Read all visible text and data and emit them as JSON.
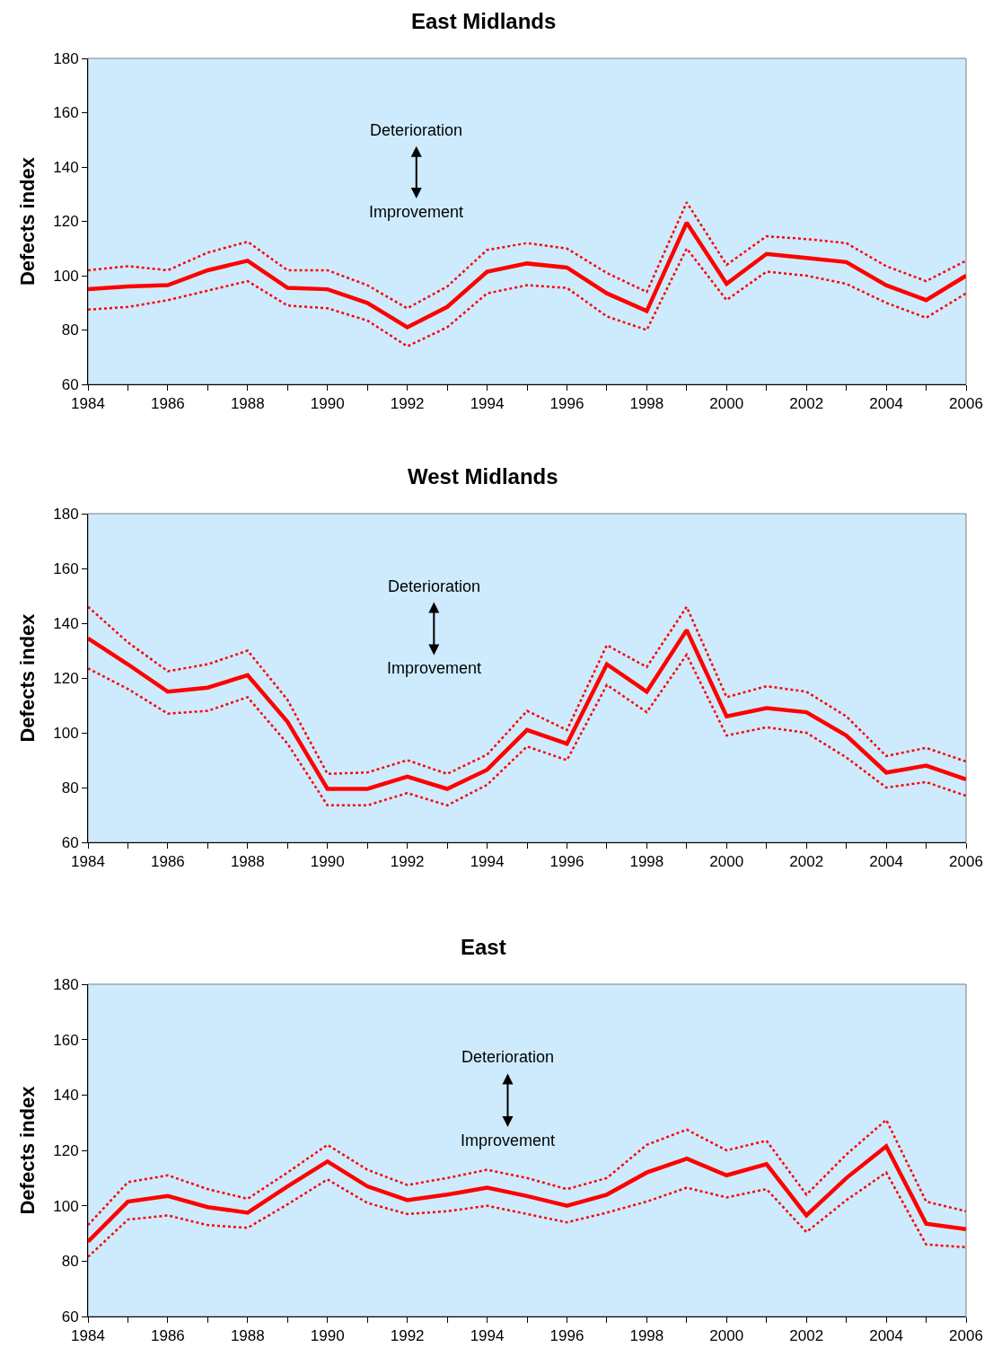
{
  "chart_data": [
    {
      "type": "line",
      "title": "East Midlands",
      "ylabel": "Defects index",
      "annotations": [
        "Deterioration",
        "Improvement"
      ],
      "x": [
        1984,
        1985,
        1986,
        1987,
        1988,
        1989,
        1990,
        1991,
        1992,
        1993,
        1994,
        1995,
        1996,
        1997,
        1998,
        1999,
        2000,
        2001,
        2002,
        2003,
        2004,
        2005,
        2006
      ],
      "series": [
        {
          "color": "#ff0000",
          "line_style": "dotted",
          "values": [
            102,
            103.5,
            102,
            108.5,
            112.5,
            102,
            102,
            96.5,
            88,
            96,
            109.5,
            112,
            110,
            101,
            94,
            127,
            104,
            114.5,
            113.5,
            112,
            103.5,
            98,
            105.5
          ]
        },
        {
          "color": "#ff0000",
          "line_style": "dotted",
          "values": [
            87.5,
            88.5,
            91,
            94.5,
            98,
            89,
            88,
            83.5,
            74,
            81,
            93.5,
            96.5,
            95.5,
            85,
            80,
            110,
            91,
            101.5,
            100,
            97,
            90,
            84.5,
            93.5
          ]
        },
        {
          "color": "#ff0000",
          "line_style": "solid",
          "values": [
            95,
            96,
            96.5,
            102,
            105.5,
            95.5,
            95,
            90,
            81,
            88.5,
            101.5,
            104.5,
            103,
            93.5,
            87,
            119.5,
            97,
            108,
            106.5,
            105,
            96.5,
            91,
            100
          ]
        }
      ],
      "xlim": [
        1984,
        2006
      ],
      "xticks": [
        1984,
        {
          "value": 1985,
          "label": null
        },
        1986,
        {
          "value": 1987,
          "label": null
        },
        1988,
        {
          "value": 1989,
          "label": null
        },
        1990,
        {
          "value": 1991,
          "label": null
        },
        1992,
        {
          "value": 1993,
          "label": null
        },
        1994,
        {
          "value": 1995,
          "label": null
        },
        1996,
        {
          "value": 1997,
          "label": null
        },
        1998,
        {
          "value": 1999,
          "label": null
        },
        2000,
        {
          "value": 2001,
          "label": null
        },
        2002,
        {
          "value": 2003,
          "label": null
        },
        2004,
        {
          "value": 2005,
          "label": null
        },
        2006
      ],
      "ylim": [
        60,
        180
      ],
      "yticks": [
        60,
        80,
        100,
        120,
        140,
        160,
        180
      ],
      "grid": false,
      "marker": "none"
    },
    {
      "type": "line",
      "title": "West Midlands",
      "ylabel": "Defects index",
      "annotations": [
        "Deterioration",
        "Improvement"
      ],
      "x": [
        1984,
        1985,
        1986,
        1987,
        1988,
        1989,
        1990,
        1991,
        1992,
        1993,
        1994,
        1995,
        1996,
        1997,
        1998,
        1999,
        2000,
        2001,
        2002,
        2003,
        2004,
        2005,
        2006
      ],
      "series": [
        {
          "color": "#ff0000",
          "line_style": "dotted",
          "values": [
            146,
            133,
            122.5,
            125,
            130,
            112,
            85,
            85.5,
            90,
            85,
            92,
            108,
            101,
            132,
            124,
            146,
            113,
            117,
            115,
            106,
            91.5,
            94.5,
            89.5
          ]
        },
        {
          "color": "#ff0000",
          "line_style": "dotted",
          "values": [
            123.5,
            116,
            107,
            108,
            113,
            96,
            73.5,
            73.5,
            78,
            73.5,
            81,
            95,
            90,
            117.5,
            107.5,
            128.5,
            99,
            102,
            100,
            91,
            80,
            82,
            77
          ]
        },
        {
          "color": "#ff0000",
          "line_style": "solid",
          "values": [
            134.5,
            125,
            115,
            116.5,
            121,
            104,
            79.5,
            79.5,
            84,
            79.5,
            86.5,
            101,
            96,
            125,
            115,
            137.5,
            106,
            109,
            107.5,
            99,
            85.5,
            88,
            83
          ]
        }
      ],
      "xlim": [
        1984,
        2006
      ],
      "xticks": [
        1984,
        {
          "value": 1985,
          "label": null
        },
        1986,
        {
          "value": 1987,
          "label": null
        },
        1988,
        {
          "value": 1989,
          "label": null
        },
        1990,
        {
          "value": 1991,
          "label": null
        },
        1992,
        {
          "value": 1993,
          "label": null
        },
        1994,
        {
          "value": 1995,
          "label": null
        },
        1996,
        {
          "value": 1997,
          "label": null
        },
        1998,
        {
          "value": 1999,
          "label": null
        },
        2000,
        {
          "value": 2001,
          "label": null
        },
        2002,
        {
          "value": 2003,
          "label": null
        },
        2004,
        {
          "value": 2005,
          "label": null
        },
        2006
      ],
      "ylim": [
        60,
        180
      ],
      "yticks": [
        60,
        80,
        100,
        120,
        140,
        160,
        180
      ],
      "grid": false,
      "marker": "none"
    },
    {
      "type": "line",
      "title": "East",
      "ylabel": "Defects index",
      "annotations": [
        "Deterioration",
        "Improvement"
      ],
      "x": [
        1984,
        1985,
        1986,
        1987,
        1988,
        1989,
        1990,
        1991,
        1992,
        1993,
        1994,
        1995,
        1996,
        1997,
        1998,
        1999,
        2000,
        2001,
        2002,
        2003,
        2004,
        2005,
        2006
      ],
      "series": [
        {
          "color": "#ff0000",
          "line_style": "dotted",
          "values": [
            93,
            108.5,
            111,
            106,
            102.5,
            112,
            122,
            113,
            107.5,
            110,
            113,
            110,
            106,
            110,
            122,
            127.5,
            120,
            123.5,
            104,
            118.5,
            131,
            101.5,
            98
          ]
        },
        {
          "color": "#ff0000",
          "line_style": "dotted",
          "values": [
            81.5,
            95,
            96.5,
            93,
            92,
            100.5,
            109.5,
            101,
            97,
            98,
            100,
            97,
            94,
            97.5,
            101.5,
            106.5,
            103,
            106,
            90.5,
            102,
            112,
            86,
            85
          ]
        },
        {
          "color": "#ff0000",
          "line_style": "solid",
          "values": [
            87,
            101.5,
            103.5,
            99.5,
            97.5,
            107,
            116,
            107,
            102,
            104,
            106.5,
            103.5,
            100,
            104,
            112,
            117,
            111,
            115,
            96.5,
            110,
            121.5,
            93.5,
            91.5
          ]
        }
      ],
      "xlim": [
        1984,
        2006
      ],
      "xticks": [
        1984,
        {
          "value": 1985,
          "label": null
        },
        1986,
        {
          "value": 1987,
          "label": null
        },
        1988,
        {
          "value": 1989,
          "label": null
        },
        1990,
        {
          "value": 1991,
          "label": null
        },
        1992,
        {
          "value": 1993,
          "label": null
        },
        1994,
        {
          "value": 1995,
          "label": null
        },
        1996,
        {
          "value": 1997,
          "label": null
        },
        1998,
        {
          "value": 1999,
          "label": null
        },
        2000,
        {
          "value": 2001,
          "label": null
        },
        2002,
        {
          "value": 2003,
          "label": null
        },
        2004,
        {
          "value": 2005,
          "label": null
        },
        2006
      ],
      "ylim": [
        60,
        180
      ],
      "yticks": [
        60,
        80,
        100,
        120,
        140,
        160,
        180
      ],
      "grid": false,
      "marker": "none"
    }
  ]
}
